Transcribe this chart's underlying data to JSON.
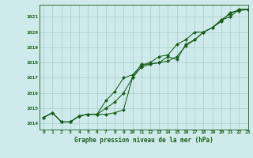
{
  "title": "Graphe pression niveau de la mer (hPa)",
  "background_color": "#ceeaea",
  "grid_color": "#aacccc",
  "line_color": "#1a5c1a",
  "marker_color": "#1a5c1a",
  "xlim": [
    -0.5,
    23
  ],
  "ylim": [
    1013.6,
    1021.8
  ],
  "yticks": [
    1014,
    1015,
    1016,
    1017,
    1018,
    1019,
    1020,
    1021
  ],
  "xticks": [
    0,
    1,
    2,
    3,
    4,
    5,
    6,
    7,
    8,
    9,
    10,
    11,
    12,
    13,
    14,
    15,
    16,
    17,
    18,
    19,
    20,
    21,
    22,
    23
  ],
  "series": [
    [
      1014.4,
      1014.7,
      1014.1,
      1014.1,
      1014.5,
      1014.6,
      1014.6,
      1014.6,
      1014.7,
      1014.9,
      1017.0,
      1017.9,
      1017.9,
      1018.0,
      1018.4,
      1018.2,
      1019.2,
      1019.5,
      1020.0,
      1020.3,
      1020.7,
      1021.3,
      1021.4,
      1021.5
    ],
    [
      1014.4,
      1014.7,
      1014.1,
      1014.1,
      1014.5,
      1014.6,
      1014.6,
      1015.0,
      1015.4,
      1016.0,
      1017.0,
      1017.7,
      1017.9,
      1018.0,
      1018.1,
      1018.4,
      1019.1,
      1019.5,
      1020.0,
      1020.3,
      1020.8,
      1021.2,
      1021.5,
      1021.5
    ],
    [
      1014.4,
      1014.7,
      1014.1,
      1014.1,
      1014.5,
      1014.6,
      1014.6,
      1015.5,
      1016.1,
      1017.0,
      1017.2,
      1017.8,
      1018.0,
      1018.4,
      1018.5,
      1019.2,
      1019.5,
      1020.0,
      1020.0,
      1020.3,
      1020.8,
      1021.0,
      1021.5,
      1021.5
    ]
  ],
  "title_fontsize": 5.5,
  "tick_fontsize": 4.5
}
